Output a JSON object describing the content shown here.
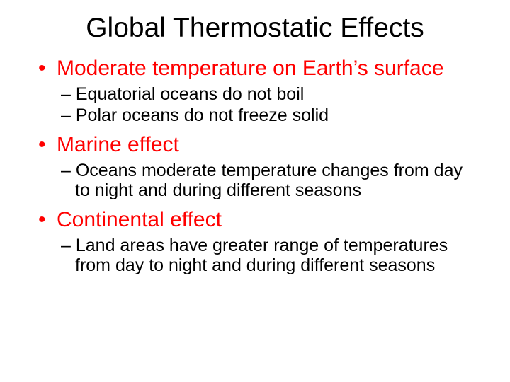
{
  "title": "Global Thermostatic Effects",
  "items": [
    {
      "label": "Moderate temperature on Earth’s surface",
      "subs": [
        "Equatorial oceans do not boil",
        "Polar oceans do not freeze solid"
      ]
    },
    {
      "label": "Marine effect",
      "subs": [
        "Oceans moderate temperature changes from day to night and during different seasons"
      ]
    },
    {
      "label": "Continental effect",
      "subs": [
        "Land areas have greater range of temperatures from day to night and during different seasons"
      ]
    }
  ],
  "colors": {
    "title": "#000000",
    "level1": "#ff0000",
    "level2": "#000000",
    "background": "#ffffff"
  }
}
